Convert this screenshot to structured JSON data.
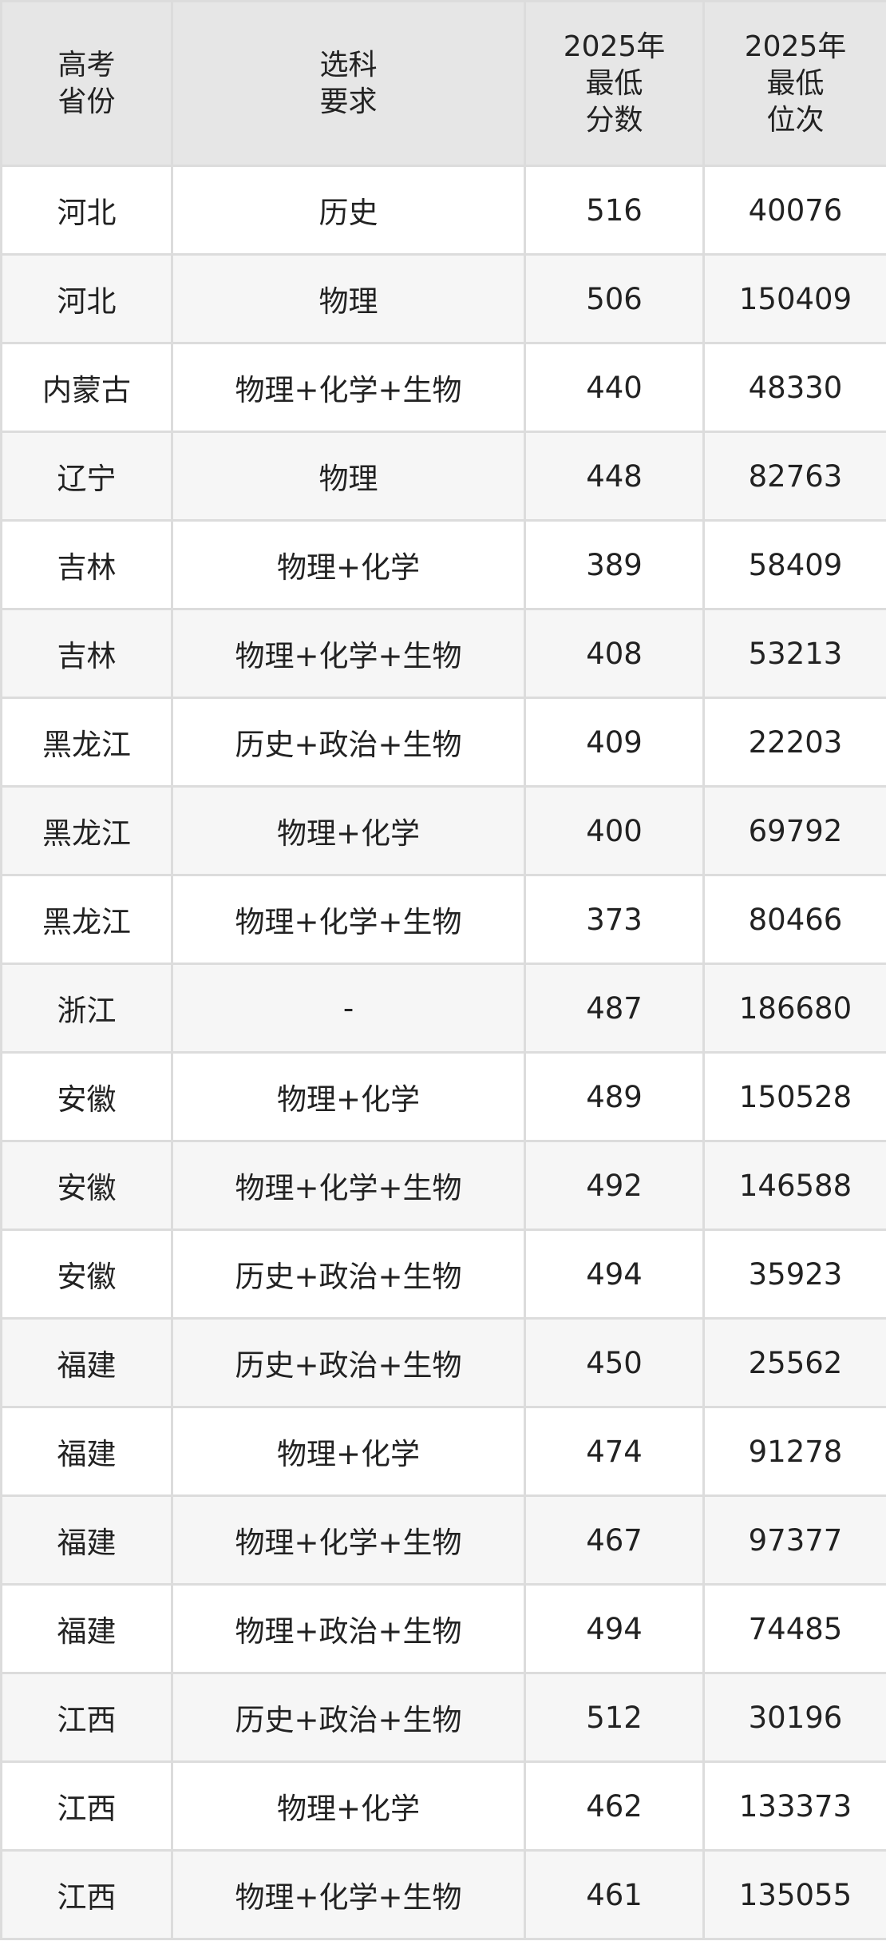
{
  "headers": [
    [
      "高考",
      "省份"
    ],
    [
      "选科",
      "要求"
    ],
    [
      "2025年",
      "最低",
      "分数"
    ],
    [
      "2025年",
      "最低",
      "位次"
    ]
  ],
  "rows": [
    {
      "province": "河北",
      "subjects": "历史",
      "min_score": "516",
      "min_rank": "40076"
    },
    {
      "province": "河北",
      "subjects": "物理",
      "min_score": "506",
      "min_rank": "150409"
    },
    {
      "province": "内蒙古",
      "subjects": "物理+化学+生物",
      "min_score": "440",
      "min_rank": "48330"
    },
    {
      "province": "辽宁",
      "subjects": "物理",
      "min_score": "448",
      "min_rank": "82763"
    },
    {
      "province": "吉林",
      "subjects": "物理+化学",
      "min_score": "389",
      "min_rank": "58409"
    },
    {
      "province": "吉林",
      "subjects": "物理+化学+生物",
      "min_score": "408",
      "min_rank": "53213"
    },
    {
      "province": "黑龙江",
      "subjects": "历史+政治+生物",
      "min_score": "409",
      "min_rank": "22203"
    },
    {
      "province": "黑龙江",
      "subjects": "物理+化学",
      "min_score": "400",
      "min_rank": "69792"
    },
    {
      "province": "黑龙江",
      "subjects": "物理+化学+生物",
      "min_score": "373",
      "min_rank": "80466"
    },
    {
      "province": "浙江",
      "subjects": "-",
      "min_score": "487",
      "min_rank": "186680"
    },
    {
      "province": "安徽",
      "subjects": "物理+化学",
      "min_score": "489",
      "min_rank": "150528"
    },
    {
      "province": "安徽",
      "subjects": "物理+化学+生物",
      "min_score": "492",
      "min_rank": "146588"
    },
    {
      "province": "安徽",
      "subjects": "历史+政治+生物",
      "min_score": "494",
      "min_rank": "35923"
    },
    {
      "province": "福建",
      "subjects": "历史+政治+生物",
      "min_score": "450",
      "min_rank": "25562"
    },
    {
      "province": "福建",
      "subjects": "物理+化学",
      "min_score": "474",
      "min_rank": "91278"
    },
    {
      "province": "福建",
      "subjects": "物理+化学+生物",
      "min_score": "467",
      "min_rank": "97377"
    },
    {
      "province": "福建",
      "subjects": "物理+政治+生物",
      "min_score": "494",
      "min_rank": "74485"
    },
    {
      "province": "江西",
      "subjects": "历史+政治+生物",
      "min_score": "512",
      "min_rank": "30196"
    },
    {
      "province": "江西",
      "subjects": "物理+化学",
      "min_score": "462",
      "min_rank": "133373"
    },
    {
      "province": "江西",
      "subjects": "物理+化学+生物",
      "min_score": "461",
      "min_rank": "135055"
    }
  ]
}
